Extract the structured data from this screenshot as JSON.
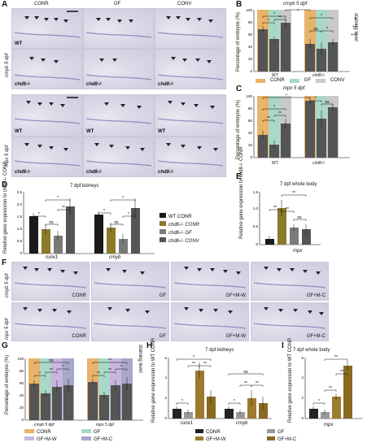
{
  "A": {
    "label": "A",
    "cols": [
      "CONR",
      "GF",
      "CONV"
    ],
    "rows": [
      {
        "stage": "cmyb 5 dpf",
        "geno": [
          "WT",
          "chd8-/-"
        ]
      },
      {
        "stage": "mpx 5 dpf",
        "geno": [
          "WT",
          "chd8-/-"
        ]
      }
    ]
  },
  "B": {
    "label": "B",
    "title": "cmyb 5 dpf",
    "ylabel": "Percentage of embryos (%)",
    "yticks": [
      "0",
      "20",
      "40",
      "60",
      "80",
      "100"
    ],
    "groups": [
      "WT",
      "chd8-/-"
    ],
    "side": "staining level",
    "plus": [
      "+",
      "++",
      "+++"
    ]
  },
  "legend_top": [
    "CONR",
    "GF",
    "CONV"
  ],
  "C": {
    "label": "C",
    "title": "mpx 5 dpf",
    "ylabel": "Percentage of embryos (%)",
    "yticks": [
      "0",
      "20",
      "40",
      "60",
      "80",
      "100"
    ],
    "groups": [
      "WT",
      "chd8-/-"
    ]
  },
  "D": {
    "label": "D",
    "title": "7 dpf kidneys",
    "ylabel": "Relative gene expression to chd8-/- CONR",
    "yticks": [
      "0",
      "0.5",
      "1.0",
      "1.5",
      "2.0",
      "2.5"
    ],
    "genes": [
      "runx1",
      "cmyb"
    ],
    "legend": [
      "WT CONR",
      "chd8-/- CONR",
      "chd8-/- GF",
      "chd8-/- CONV"
    ]
  },
  "E": {
    "label": "E",
    "title": "7 dpf whole body",
    "ylabel": "Relative gene expression to chd8-/- CONR",
    "yticks": [
      "0",
      "0.5",
      "1.0",
      "1.5"
    ],
    "gene": "mpx"
  },
  "F": {
    "label": "F",
    "cols": [
      "CONR",
      "GF",
      "GF+M-W",
      "GF+M-C"
    ],
    "rows": [
      "cmyb 5 dpf",
      "mpx 5 dpf"
    ]
  },
  "G": {
    "label": "G",
    "ylabel": "Percentage of embryos (%)",
    "yticks": [
      "0",
      "20",
      "40",
      "60",
      "80",
      "100"
    ],
    "groups": [
      "cmyb 5 dpf",
      "mpx 5 dpf"
    ],
    "legend": [
      "CONR",
      "GF",
      "GF+M-W",
      "GF+M-C"
    ],
    "side": "staining level"
  },
  "H": {
    "label": "H",
    "title": "7 dpf kidneys",
    "ylabel": "Relative gene expression to WT CONR",
    "yticks": [
      "0",
      "2",
      "4",
      "6"
    ],
    "genes": [
      "runx1",
      "cmyb"
    ]
  },
  "I": {
    "label": "I",
    "title": "7 dpf whole body",
    "ylabel": "Relative gene expression to WT CONR",
    "yticks": [
      "0",
      "2",
      "4",
      "6"
    ],
    "gene": "mpx"
  },
  "legend_bottom": [
    "CONR",
    "GF+M-W",
    "GF",
    "GF+M-C"
  ],
  "sig": {
    "s1": "*",
    "s2": "**",
    "ns": "ns"
  },
  "colors": {
    "conr": "#e8b36a",
    "gf": "#a9d8c8",
    "conv": "#c9c9c9",
    "mw": "#c9b6e0",
    "mc": "#a7a7c9",
    "dark": "#555555",
    "mid": "#7a7a7a",
    "light": "#b7b7b7",
    "black": "#222222",
    "brown": "#9c7a2e",
    "wtconr": "#1a1a1a",
    "chdconr": "#8a7a2a"
  }
}
